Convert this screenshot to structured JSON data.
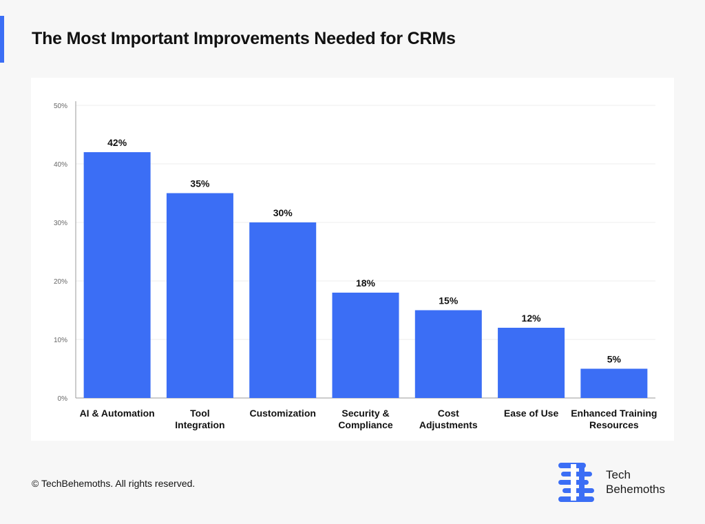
{
  "page": {
    "title": "The Most Important Improvements Needed for CRMs",
    "copyright": "© TechBehemoths. All rights reserved.",
    "brand": {
      "name_line1": "Tech",
      "name_line2": "Behemoths",
      "logo_icon": "techbehemoths-logo-icon"
    }
  },
  "colors": {
    "accent": "#3b6ef5",
    "bar": "#3b6ef5",
    "background": "#f7f7f7",
    "card": "#ffffff"
  },
  "chart_data": {
    "type": "bar",
    "categories": [
      [
        "AI & Automation"
      ],
      [
        "Tool",
        "Integration"
      ],
      [
        "Customization"
      ],
      [
        "Security &",
        "Compliance"
      ],
      [
        "Cost",
        "Adjustments"
      ],
      [
        "Ease of Use"
      ],
      [
        "Enhanced Training",
        "Resources"
      ]
    ],
    "values": [
      42,
      35,
      30,
      18,
      15,
      12,
      5
    ],
    "data_labels": [
      "42%",
      "35%",
      "30%",
      "18%",
      "15%",
      "12%",
      "5%"
    ],
    "ylim": [
      0,
      50
    ],
    "yticks": [
      0,
      10,
      20,
      30,
      40,
      50
    ],
    "ytick_labels": [
      "0%",
      "10%",
      "20%",
      "30%",
      "40%",
      "50%"
    ],
    "grid": true,
    "legend": "none"
  }
}
